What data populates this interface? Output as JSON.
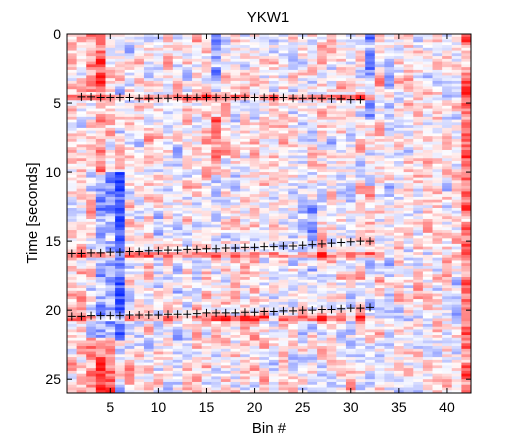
{
  "chart_data": {
    "type": "heatmap",
    "title": "YKW1",
    "xlabel": "Bin #",
    "ylabel": "Time [seconds]",
    "xlim": [
      0.5,
      42.5
    ],
    "ylim": [
      0,
      26
    ],
    "y_reversed": true,
    "xticks": [
      5,
      10,
      15,
      20,
      25,
      30,
      35,
      40
    ],
    "yticks": [
      0,
      5,
      10,
      15,
      20,
      25
    ],
    "colormap": {
      "negative": "#0b2bff",
      "zero": "#ffffff",
      "positive": "#ff0b0b"
    },
    "grid": false,
    "n_bins": 42,
    "n_rows": 130,
    "row_dt_seconds": 0.2,
    "column_bias": [
      0.15,
      0.2,
      0.05,
      0.45,
      0.15,
      -0.05,
      0.1,
      0,
      0.15,
      0.05,
      0,
      -0.1,
      0.05,
      0.1,
      0.2,
      0,
      0.1,
      0.05,
      0,
      0.1,
      0,
      0,
      0.05,
      0,
      -0.1,
      0,
      0.1,
      0,
      0.05,
      0.05,
      0.1,
      -0.1,
      0.1,
      -0.1,
      0.05,
      0.05,
      0.1,
      0.05,
      0.15,
      0.1,
      0,
      0.3
    ],
    "strong_bands": [
      {
        "bins": [
          4,
          6
        ],
        "from": 10,
        "to": 22,
        "strength": -0.6
      },
      {
        "bins": [
          3,
          5
        ],
        "from": 22,
        "to": 26,
        "strength": 0.5
      },
      {
        "bins": [
          3,
          4
        ],
        "from": 0,
        "to": 4,
        "strength": 0.5
      },
      {
        "bins": [
          16,
          16
        ],
        "from": 6,
        "to": 10,
        "strength": 0.55
      },
      {
        "bins": [
          16,
          16
        ],
        "from": 0,
        "to": 4,
        "strength": -0.5
      },
      {
        "bins": [
          32,
          32
        ],
        "from": 11,
        "to": 15,
        "strength": 0.45
      },
      {
        "bins": [
          32,
          32
        ],
        "from": 0,
        "to": 6,
        "strength": -0.4
      },
      {
        "bins": [
          42,
          42
        ],
        "from": 0,
        "to": 26,
        "strength": 0.35
      },
      {
        "bins": [
          26,
          26
        ],
        "from": 12,
        "to": 17,
        "strength": -0.4
      }
    ],
    "pick_series": [
      {
        "name": "",
        "x": [
          2,
          3,
          4,
          5,
          6,
          7,
          8,
          9,
          10,
          11,
          12,
          13,
          14,
          15,
          16,
          17,
          18,
          19,
          20,
          21,
          22,
          23,
          24,
          25,
          26,
          27,
          28,
          29,
          30,
          31
        ],
        "y": [
          4.55,
          4.55,
          4.6,
          4.6,
          4.6,
          4.6,
          4.65,
          4.65,
          4.65,
          4.65,
          4.6,
          4.6,
          4.6,
          4.6,
          4.6,
          4.6,
          4.6,
          4.6,
          4.6,
          4.6,
          4.6,
          4.6,
          4.65,
          4.65,
          4.65,
          4.65,
          4.7,
          4.7,
          4.75,
          4.75
        ]
      },
      {
        "name": "",
        "x": [
          1,
          2,
          3,
          4,
          5,
          6,
          7,
          8,
          9,
          10,
          11,
          12,
          13,
          14,
          15,
          16,
          17,
          18,
          19,
          20,
          21,
          22,
          23,
          24,
          25,
          26,
          27,
          28,
          29,
          30,
          31,
          32
        ],
        "y": [
          15.9,
          15.9,
          15.85,
          15.85,
          15.8,
          15.8,
          15.75,
          15.75,
          15.7,
          15.7,
          15.65,
          15.65,
          15.6,
          15.6,
          15.55,
          15.55,
          15.5,
          15.5,
          15.45,
          15.45,
          15.4,
          15.4,
          15.35,
          15.35,
          15.3,
          15.25,
          15.2,
          15.15,
          15.1,
          15.05,
          15.0,
          15.0
        ]
      },
      {
        "name": "",
        "x": [
          1,
          2,
          3,
          4,
          5,
          6,
          7,
          8,
          9,
          10,
          11,
          12,
          13,
          14,
          15,
          16,
          17,
          18,
          19,
          20,
          21,
          22,
          23,
          24,
          25,
          26,
          27,
          28,
          29,
          30,
          31,
          32
        ],
        "y": [
          20.45,
          20.45,
          20.4,
          20.4,
          20.4,
          20.4,
          20.35,
          20.35,
          20.35,
          20.35,
          20.3,
          20.3,
          20.3,
          20.25,
          20.2,
          20.2,
          20.2,
          20.2,
          20.15,
          20.15,
          20.1,
          20.1,
          20.05,
          20.05,
          20.0,
          20.0,
          19.95,
          19.95,
          19.9,
          19.85,
          19.85,
          19.8
        ]
      }
    ]
  }
}
